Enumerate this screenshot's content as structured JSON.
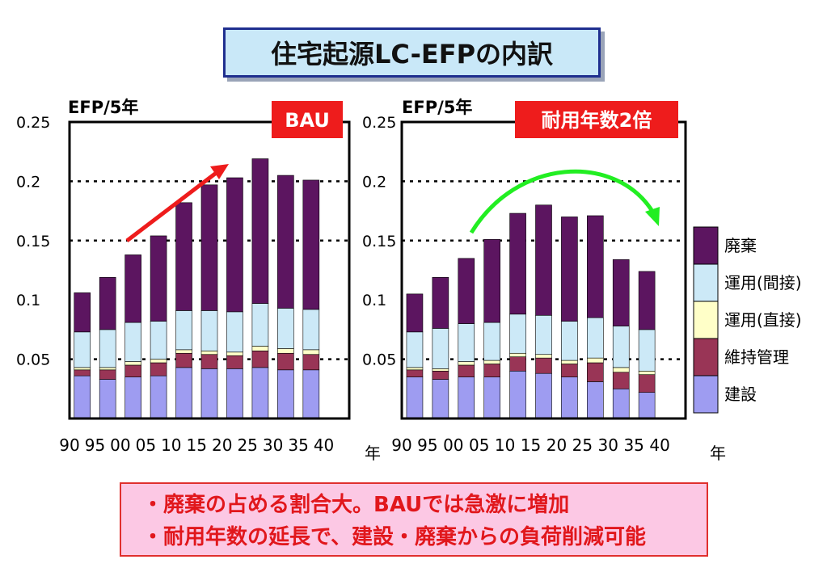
{
  "title": "住宅起源LC-EFPの内訳",
  "colors": {
    "haiki": "#5c1560",
    "unyo_kansetsu": "#cce9f7",
    "unyo_chokusetsu": "#ffffc8",
    "iji_kanri": "#993556",
    "kensetsu": "#9e9cf1",
    "badge_red": "#ee1c1c",
    "bau_arrow": "#ee1c1c",
    "double_arrow": "#22ee22",
    "note_bg": "#fcc8e4",
    "note_text": "#e1171c"
  },
  "notes": [
    "・廃棄の占める割合大。BAUでは急激に増加",
    "・耐用年数の延長で、建設・廃棄からの負荷削減可能"
  ],
  "chart_data": [
    {
      "type": "bar",
      "stacked": true,
      "badge": "BAU",
      "ylabel": "EFP/5年",
      "xlabel": "年",
      "ylim": [
        0,
        0.25
      ],
      "yticks": [
        "0.25",
        "0.2",
        "0.15",
        "0.1",
        "0.05"
      ],
      "xticks": [
        "90",
        "95",
        "00",
        "05",
        "10",
        "15",
        "20",
        "25",
        "30",
        "35",
        "40"
      ],
      "gridlines": [
        0.2,
        0.15,
        0.05
      ],
      "annotation": "red arrow rising",
      "series": [
        {
          "name": "建設",
          "key": "kensetsu",
          "values": [
            0.036,
            0.033,
            0.035,
            0.036,
            0.043,
            0.042,
            0.042,
            0.043,
            0.041,
            0.041
          ]
        },
        {
          "name": "維持管理",
          "key": "iji_kanri",
          "values": [
            0.005,
            0.008,
            0.01,
            0.011,
            0.012,
            0.012,
            0.011,
            0.014,
            0.014,
            0.013
          ]
        },
        {
          "name": "運用(直接)",
          "key": "unyo_chokusetsu",
          "values": [
            0.002,
            0.002,
            0.003,
            0.003,
            0.003,
            0.003,
            0.003,
            0.004,
            0.004,
            0.004
          ]
        },
        {
          "name": "運用(間接)",
          "key": "unyo_kansetsu",
          "values": [
            0.03,
            0.032,
            0.033,
            0.032,
            0.033,
            0.034,
            0.034,
            0.036,
            0.034,
            0.034
          ]
        },
        {
          "name": "廃棄",
          "key": "haiki",
          "values": [
            0.033,
            0.044,
            0.057,
            0.072,
            0.091,
            0.106,
            0.113,
            0.122,
            0.112,
            0.109
          ]
        }
      ]
    },
    {
      "type": "bar",
      "stacked": true,
      "badge": "耐用年数2倍",
      "ylabel": "EFP/5年",
      "xlabel": "年",
      "ylim": [
        0,
        0.25
      ],
      "yticks": [
        "0.25",
        "0.2",
        "0.15",
        "0.1",
        "0.05"
      ],
      "xticks": [
        "90",
        "95",
        "00",
        "05",
        "10",
        "15",
        "20",
        "25",
        "30",
        "35",
        "40"
      ],
      "gridlines": [
        0.2,
        0.15,
        0.05
      ],
      "annotation": "green curved arrow",
      "series": [
        {
          "name": "建設",
          "key": "kensetsu",
          "values": [
            0.035,
            0.033,
            0.035,
            0.035,
            0.04,
            0.038,
            0.035,
            0.031,
            0.025,
            0.022
          ]
        },
        {
          "name": "維持管理",
          "key": "iji_kanri",
          "values": [
            0.006,
            0.007,
            0.01,
            0.011,
            0.012,
            0.013,
            0.011,
            0.016,
            0.014,
            0.015
          ]
        },
        {
          "name": "運用(直接)",
          "key": "unyo_chokusetsu",
          "values": [
            0.002,
            0.002,
            0.003,
            0.003,
            0.003,
            0.003,
            0.003,
            0.004,
            0.004,
            0.003
          ]
        },
        {
          "name": "運用(間接)",
          "key": "unyo_kansetsu",
          "values": [
            0.03,
            0.034,
            0.032,
            0.032,
            0.033,
            0.033,
            0.033,
            0.034,
            0.035,
            0.035
          ]
        },
        {
          "name": "廃棄",
          "key": "haiki",
          "values": [
            0.032,
            0.043,
            0.055,
            0.07,
            0.085,
            0.093,
            0.088,
            0.086,
            0.056,
            0.049
          ]
        }
      ]
    }
  ],
  "legend": [
    {
      "label": "廃棄",
      "key": "haiki"
    },
    {
      "label": "運用(間接)",
      "key": "unyo_kansetsu"
    },
    {
      "label": "運用(直接)",
      "key": "unyo_chokusetsu"
    },
    {
      "label": "維持管理",
      "key": "iji_kanri"
    },
    {
      "label": "建設",
      "key": "kensetsu"
    }
  ]
}
